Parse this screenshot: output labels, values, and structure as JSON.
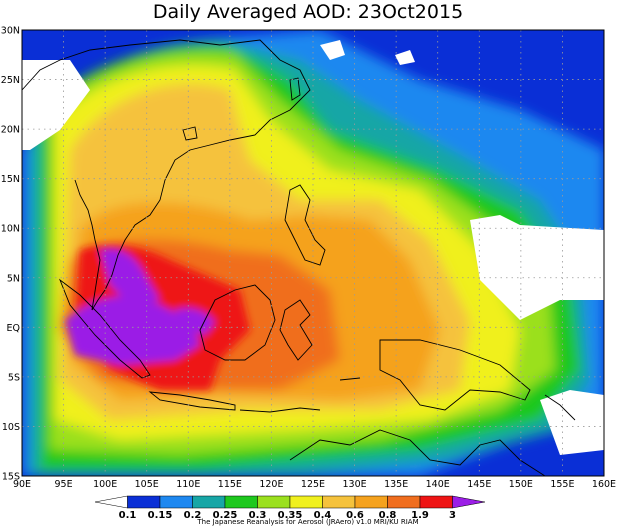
{
  "title": "Daily Averaged AOD: 23Oct2015",
  "credit": "The Japanese Reanalysis for Aerosol (JRAero) v1.0 MRI/KU RIAM",
  "map": {
    "lon_range": [
      90,
      160
    ],
    "lat_range": [
      -15,
      30
    ],
    "lon_ticks": [
      "90E",
      "95E",
      "100E",
      "105E",
      "110E",
      "115E",
      "120E",
      "125E",
      "130E",
      "135E",
      "140E",
      "145E",
      "150E",
      "155E",
      "160E"
    ],
    "lat_ticks": [
      "30N",
      "25N",
      "20N",
      "15N",
      "10N",
      "5N",
      "EQ",
      "5S",
      "10S",
      "15S"
    ]
  },
  "colorbar": {
    "labels": [
      "0.1",
      "0.15",
      "0.2",
      "0.25",
      "0.3",
      "0.35",
      "0.4",
      "0.6",
      "0.8",
      "1.9",
      "3"
    ],
    "colors": [
      "#ffffff",
      "#0a2fd6",
      "#1e88f0",
      "#17a6a6",
      "#1ec81e",
      "#9be01e",
      "#f0f01e",
      "#f5c23c",
      "#f5a21e",
      "#f06e1e",
      "#ee1414",
      "#9b1ee6"
    ]
  },
  "palette": {
    "white": "#ffffff",
    "blue": "#0a2fd6",
    "lightblue": "#1e88f0",
    "teal": "#17a6a6",
    "green": "#1ec81e",
    "lime": "#9be01e",
    "yellow": "#f0f01e",
    "lightorange": "#f5c23c",
    "orange": "#f5a21e",
    "darkorange": "#f06e1e",
    "red": "#ee1414",
    "purple": "#9b1ee6"
  }
}
